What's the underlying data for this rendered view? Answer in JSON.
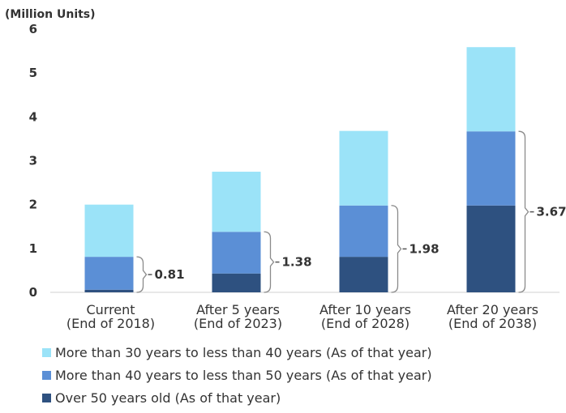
{
  "chart_data": {
    "type": "bar",
    "stacked": true,
    "unit_label": "(Million Units)",
    "categories": [
      [
        "Current",
        "(End of 2018)"
      ],
      [
        "After 5 years",
        "(End of 2023)"
      ],
      [
        "After 10 years",
        "(End of 2028)"
      ],
      [
        "After 20 years",
        "(End of 2038)"
      ]
    ],
    "series": [
      {
        "name": "Over 50 years old (As of that year)",
        "color": "#2e5180",
        "values": [
          0.06,
          0.43,
          0.81,
          1.98
        ]
      },
      {
        "name": "More than 40 years to less than 50 years (As of that year)",
        "color": "#5b8fd6",
        "values": [
          0.75,
          0.95,
          1.17,
          1.69
        ]
      },
      {
        "name": "More than 30 years to less than 40 years (As of that year)",
        "color": "#9be3f8",
        "values": [
          1.19,
          1.37,
          1.7,
          1.92
        ]
      }
    ],
    "legend_order": [
      2,
      1,
      0
    ],
    "annotations": [
      "0.81",
      "1.38",
      "1.98",
      "3.67"
    ],
    "ylim": [
      0,
      6
    ],
    "yticks": [
      "0",
      "1",
      "2",
      "3",
      "4",
      "5",
      "6"
    ],
    "grid": false,
    "legend_position": "bottom-left"
  }
}
